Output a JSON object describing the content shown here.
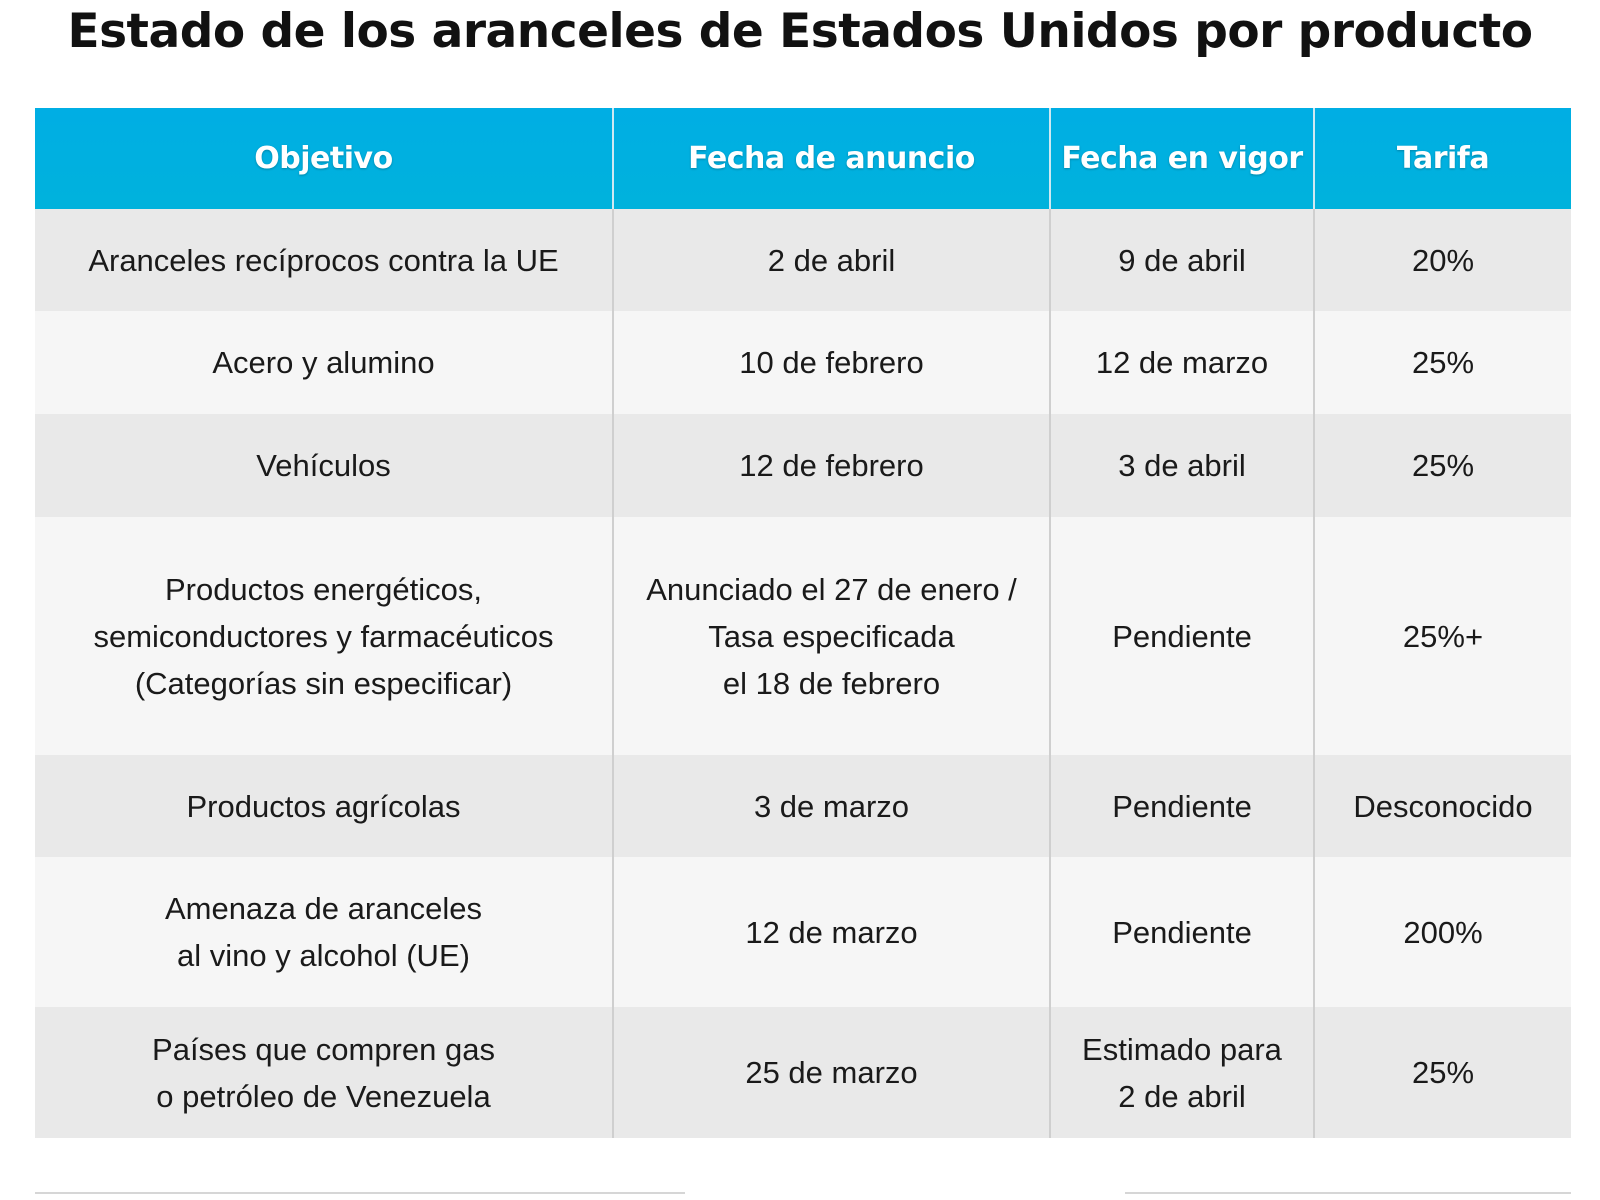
{
  "title": "Estado de los aranceles de Estados Unidos por producto",
  "chart_data": {
    "type": "table",
    "title": "Estado de los aranceles de Estados Unidos por producto",
    "columns": [
      "Objetivo",
      "Fecha de anuncio",
      "Fecha en vigor",
      "Tarifa"
    ],
    "rows": [
      {
        "objetivo": "Aranceles recíprocos contra la UE",
        "fecha_anuncio": "2 de abril",
        "fecha_vigor": "9 de abril",
        "tarifa": "20%"
      },
      {
        "objetivo": "Acero y alumino",
        "fecha_anuncio": "10 de febrero",
        "fecha_vigor": "12 de marzo",
        "tarifa": "25%"
      },
      {
        "objetivo": "Vehículos",
        "fecha_anuncio": "12 de febrero",
        "fecha_vigor": "3 de abril",
        "tarifa": "25%"
      },
      {
        "objetivo": "Productos energéticos,\nsemiconductores y farmacéuticos\n(Categorías sin especificar)",
        "fecha_anuncio": "Anunciado el 27 de enero /\nTasa especificada\nel 18 de febrero",
        "fecha_vigor": "Pendiente",
        "tarifa": "25%+"
      },
      {
        "objetivo": "Productos agrícolas",
        "fecha_anuncio": "3 de marzo",
        "fecha_vigor": "Pendiente",
        "tarifa": "Desconocido"
      },
      {
        "objetivo": "Amenaza de aranceles\nal vino y alcohol (UE)",
        "fecha_anuncio": "12 de marzo",
        "fecha_vigor": "Pendiente",
        "tarifa": "200%"
      },
      {
        "objetivo": "Países que compren gas\no petróleo de Venezuela",
        "fecha_anuncio": "25 de marzo",
        "fecha_vigor": "Estimado para\n2 de abril",
        "tarifa": "25%"
      }
    ]
  },
  "colors": {
    "header_bg": "#00aee4",
    "header_text": "#ffffff",
    "row_odd_bg": "#e9e9e9",
    "row_even_bg": "#f6f6f6"
  }
}
